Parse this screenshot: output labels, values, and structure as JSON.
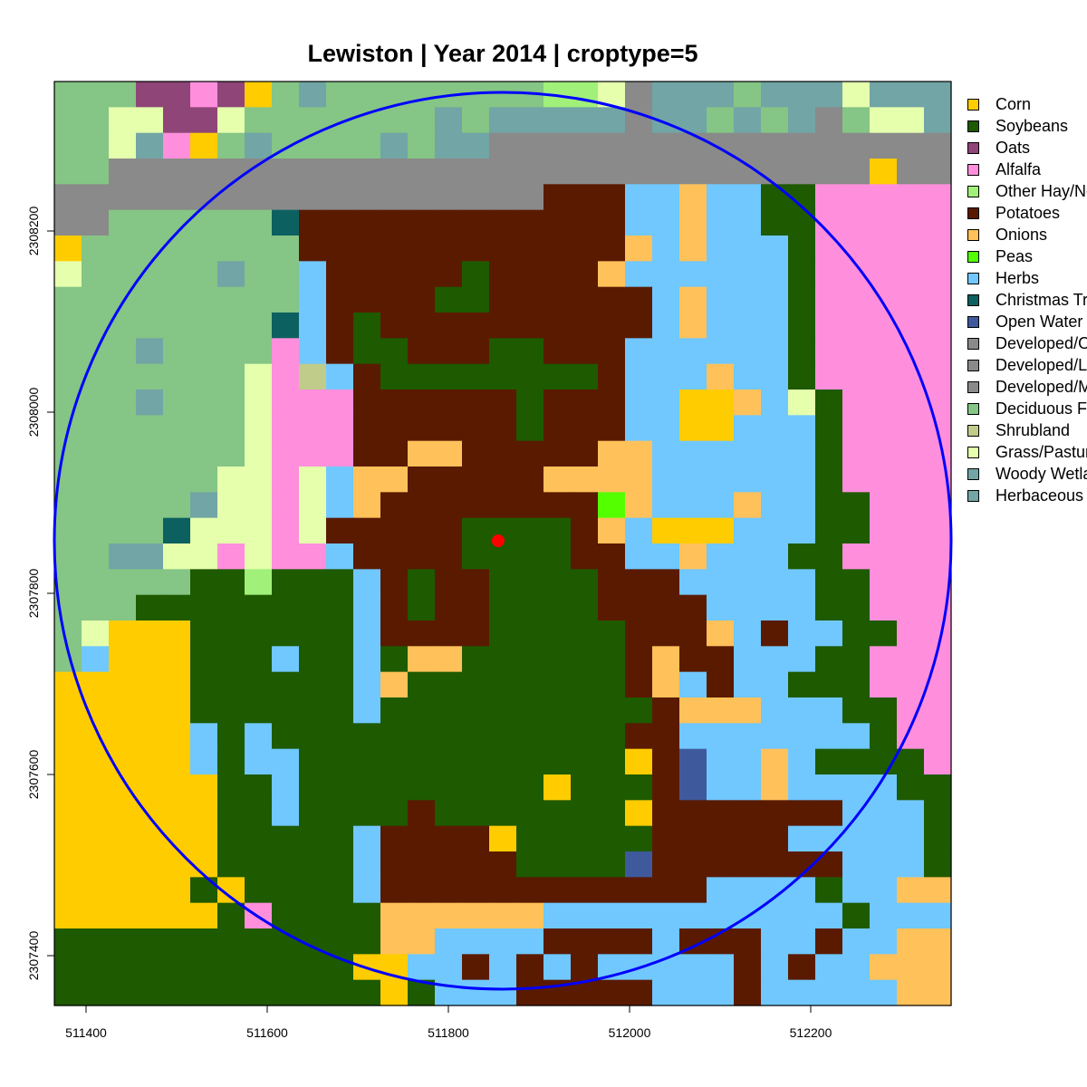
{
  "title": "Lewiston | Year 2014 | croptype=5",
  "axes": {
    "x_ticks": [
      "511400",
      "511600",
      "511800",
      "512000",
      "512200"
    ],
    "y_ticks": [
      "2307400",
      "2307600",
      "2307800",
      "2308000",
      "2308200"
    ]
  },
  "legend": [
    {
      "label": "Corn",
      "color": "#FFCC00"
    },
    {
      "label": "Soybeans",
      "color": "#1E5A00"
    },
    {
      "label": "Oats",
      "color": "#8F4578"
    },
    {
      "label": "Alfalfa",
      "color": "#FF8FDC"
    },
    {
      "label": "Other Hay/Non Alfalfa",
      "color": "#A0F07A"
    },
    {
      "label": "Potatoes",
      "color": "#5A1A00"
    },
    {
      "label": "Onions",
      "color": "#FFC15A"
    },
    {
      "label": "Peas",
      "color": "#54FF00"
    },
    {
      "label": "Herbs",
      "color": "#70C8FF"
    },
    {
      "label": "Christmas Trees",
      "color": "#0D6060"
    },
    {
      "label": "Open Water",
      "color": "#3F5A9C"
    },
    {
      "label": "Developed/Open Space",
      "color": "#8A8A8A"
    },
    {
      "label": "Developed/Low Intensity",
      "color": "#8A8A8A"
    },
    {
      "label": "Developed/Med Intensity",
      "color": "#8A8A8A"
    },
    {
      "label": "Deciduous Forest",
      "color": "#85C585"
    },
    {
      "label": "Shrubland",
      "color": "#BFCC8A"
    },
    {
      "label": "Grass/Pasture",
      "color": "#E5FFAD"
    },
    {
      "label": "Woody Wetlands",
      "color": "#72A5A5"
    },
    {
      "label": "Herbaceous Wetlands",
      "color": "#72A5A5"
    }
  ],
  "map": {
    "code_to_class": {
      "C": "Corn",
      "S": "Soybeans",
      "O": "Oats",
      "A": "Alfalfa",
      "H": "Other Hay/Non Alfalfa",
      "P": "Potatoes",
      "N": "Onions",
      "E": "Peas",
      "B": "Herbs",
      "T": "Christmas Trees",
      "W": "Open Water",
      "D": "Developed/Open Space",
      "F": "Deciduous Forest",
      "R": "Shrubland",
      "G": "Grass/Pasture",
      "V": "Woody Wetlands"
    },
    "rows": [
      "FFFOOAOCFVFFFFFFFFHHGDVVVFVVVGV",
      "FFGGOOGFFFFFFFVFVVVVVDVVFVFVDFGGV",
      "FFGVACFVFFFFVFVVDDDDDDDDDDDDDDDDD",
      "FFDDDDDDDDDDDDDDDDDDDDDDDDDDDDCDD",
      "DDDDDDDDDDDDDDDDDDPPPBBNBBSSAAAAAA",
      "DDFFFFFFTPPPPPPPPPPPPBBNBBSSAAAAAA",
      "CFFFFFFFFPPPPPPPPPPPPNBNBBBSAAAAAA",
      "GFFFFFVFFBPPPPPSPPPPNBBBBBBSAAAAAA",
      "FFFFFFFFFBPPPPSSPPPPPPBNBBBSAAAAAA",
      "FFFFFFFFTBPSPPPPPPPPPPBNBBBSAAAAAA",
      "FFFVFFFFABPSSPPPSSPPPBBBBBBSAAAAAA",
      "FFFFFFFGARBPSSSSSSSSPBBBNBBSAAAAAA",
      "FFFVFFFGAAAPPPPPPSPPPBBCCNBGSAAAAAA",
      "FFFFFFFGAAAPPPPPPSPPPBBCCBBBSAAAAAA",
      "FFFFFFFGAAAPPNNPPPPPNNBBBBBBSAAAAAA",
      "FFFFFFGGAGBNNPPPPPNNNNBBBBBBSAAAAAA",
      "FFFFFVGGAGBNPPPPPPPPENBBBNBBSSAAAAA",
      "FFFFTGGGAGPPPPPSSSSPNBCCCBBBSSAAAAA",
      "FFVVGGAGAABPPPPSSSSPPBBNBBBSSAAAAAA",
      "FFFFFSSHSSSBPSPPSSSSPPPBBBBBSSAAAAA",
      "FFFSSSSSSSSBPSPPSSSSPPPPBBBBSSAAAAA",
      "FGCCCSSSSSSBPPPPSSSSSPPPNBPBBSSAAAAA",
      "FBCCCSSSBSSBSNNSSSSSSPNPPBBBSSAAAAA",
      "CCCCCSSSSSSBNSSSSSSSSPNBPBBSSSAAAAAA",
      "CCCCCSSSSSSBSSSSSSSSSSPNNNBBBSSAAAAAA",
      "CCCCCBSBSSSSSSSSSSSSSPPBBBBBBBSAAAAAA",
      "CCCCCBSBBSSSSSSSSSSSSCPWBBNBSSSSAAAAC",
      "CCCCCCSSBSSSSSSSSSCSSSPWBBNBBBBSSAAAA",
      "CCCCCCSSBSSSSPSSSSSSSCPPPPPPPBBBSSAAAC",
      "CCCCCCSSSSSBPPPPCSSSSSPPPPPBBBBBSSAAAS",
      "CCCCCCSSSSSBPPPPPSSSSWPPPPPPPBBBSSSSSS",
      "CCCCCSCSSSSBPPPPPPPPPPPPBBBBSBBNNBNNNN",
      "CCCCCCSASSSSNNNNNNBBBBBBBBBBBSBBBNNNNNNNN",
      "SSSSSSSSSSSSNNBBBBPPPPBPPPBBPBBNNNNNNNNN",
      "SSSSSSSSSSSCCBBPBPBPBBBBBPBPBBNNNBNNNNNN",
      "SSSSSSSSSSSSCSBBBPPPPPBBBPBBBBBNNNNNNNNN"
    ],
    "buffer_circle": "radius ~500 m around sample point",
    "sample_point_color": "#FF0000",
    "circle_color": "#0000FF"
  }
}
